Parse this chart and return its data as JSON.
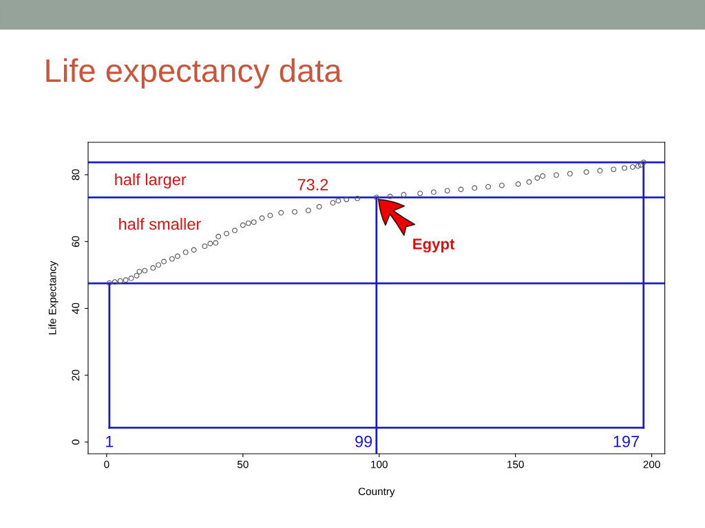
{
  "chart_data": {
    "type": "scatter",
    "title": "Life expectancy data",
    "xlabel": "Country",
    "ylabel": "Life Expectancy",
    "x": [
      1,
      3,
      5,
      7,
      9,
      11,
      12,
      14,
      17,
      19,
      21,
      24,
      26,
      29,
      32,
      36,
      38,
      40,
      41,
      44,
      47,
      50,
      52,
      54,
      57,
      60,
      64,
      69,
      74,
      78,
      83,
      85,
      88,
      92,
      99,
      104,
      109,
      115,
      120,
      125,
      130,
      135,
      140,
      145,
      151,
      155,
      158,
      160,
      165,
      170,
      176,
      181,
      186,
      190,
      193,
      195,
      196,
      197
    ],
    "series": [
      {
        "color": "#555555",
        "values": [
          47.6,
          47.9,
          48.2,
          48.5,
          49.0,
          49.8,
          51.0,
          51.3,
          52.1,
          53.0,
          54.0,
          54.8,
          55.6,
          56.8,
          57.5,
          58.6,
          59.4,
          59.6,
          61.5,
          62.4,
          63.3,
          64.9,
          65.5,
          65.8,
          67.0,
          67.8,
          68.6,
          68.9,
          69.3,
          70.4,
          71.6,
          72.2,
          72.6,
          72.9,
          73.2,
          73.5,
          74.0,
          74.4,
          74.8,
          75.2,
          75.6,
          76.0,
          76.4,
          76.8,
          77.2,
          77.8,
          79.0,
          79.6,
          79.9,
          80.3,
          80.8,
          81.2,
          81.6,
          82.0,
          82.3,
          82.6,
          82.9,
          83.7
        ]
      }
    ],
    "marker": "circle",
    "grid": false,
    "legend": false,
    "xlim": [
      -6.8,
      204.8
    ],
    "xticks": [
      0,
      50,
      100,
      150,
      200
    ],
    "ylim": [
      -3.5,
      89.7
    ],
    "yticks": [
      0,
      20,
      40,
      60,
      80
    ],
    "ref_lines": [
      {
        "axis": "y",
        "value": 83.7,
        "label": null,
        "color": "#1a1acc"
      },
      {
        "axis": "y",
        "value": 73.2,
        "label": "73.2",
        "color": "#1a1acc"
      },
      {
        "axis": "y",
        "value": 47.5,
        "label": null,
        "color": "#1a1acc"
      },
      {
        "axis": "y",
        "value": 4.3,
        "label": null,
        "color": "#1a1acc"
      },
      {
        "axis": "x",
        "value": 1,
        "label": "1",
        "color": "#1a1acc"
      },
      {
        "axis": "x",
        "value": 99,
        "label": "99",
        "color": "#1a1acc"
      },
      {
        "axis": "x",
        "value": 197,
        "label": "197",
        "color": "#1a1acc"
      }
    ],
    "annotations": [
      "half larger",
      "half smaller",
      "Egypt"
    ]
  }
}
